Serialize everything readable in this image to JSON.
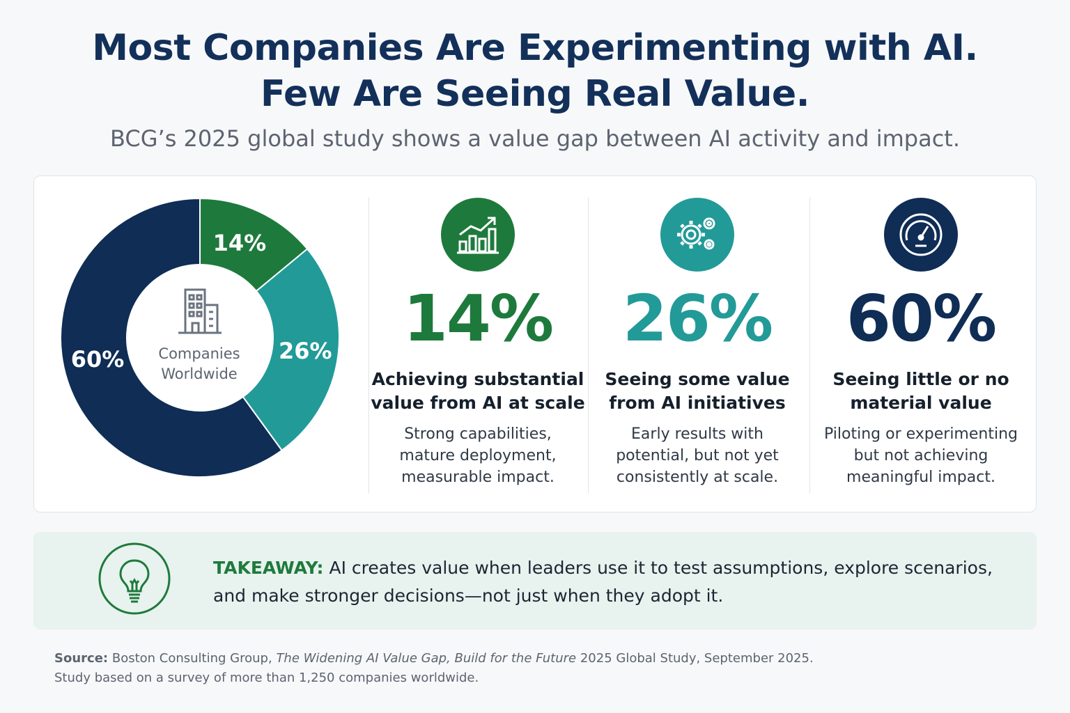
{
  "title": {
    "line1": "Most Companies Are Experimenting with AI.",
    "line2": "Few Are Seeing Real Value."
  },
  "subtitle": "BCG’s 2025 global study shows a value gap between AI activity and impact.",
  "colors": {
    "green": "#1e7a3c",
    "teal": "#229a98",
    "navy": "#0f2d55",
    "takeaway_bg": "#e8f2ee"
  },
  "chart_data": {
    "type": "pie",
    "donut": true,
    "center_label": {
      "line1": "Companies",
      "line2": "Worldwide"
    },
    "center_icon": "building-icon",
    "categories": [
      "Achieving substantial value from AI at scale",
      "Seeing some value from AI initiatives",
      "Seeing little or no material value"
    ],
    "values": [
      14,
      26,
      60
    ],
    "labels": [
      "14%",
      "26%",
      "60%"
    ],
    "colors": [
      "#1e7a3c",
      "#229a98",
      "#0f2d55"
    ]
  },
  "stats": [
    {
      "icon": "growth-chart-icon",
      "value": "14%",
      "heading_line1": "Achieving substantial",
      "heading_line2": "value from AI at scale",
      "desc_line1": "Strong capabilities,",
      "desc_line2": "mature deployment,",
      "desc_line3": "measurable impact.",
      "color": "#1e7a3c"
    },
    {
      "icon": "gears-icon",
      "value": "26%",
      "heading_line1": "Seeing some value",
      "heading_line2": "from AI initiatives",
      "desc_line1": "Early results with",
      "desc_line2": "potential, but not yet",
      "desc_line3": "consistently at scale.",
      "color": "#229a98"
    },
    {
      "icon": "gauge-icon",
      "value": "60%",
      "heading_line1": "Seeing little or no",
      "heading_line2": "material value",
      "desc_line1": "Piloting or experimenting",
      "desc_line2": "but not achieving",
      "desc_line3": "meaningful impact.",
      "color": "#0f2d55"
    }
  ],
  "takeaway": {
    "icon": "lightbulb-icon",
    "label": "TAKEAWAY:",
    "line1": "AI creates value when leaders use it to test assumptions, explore scenarios,",
    "line2": "and make stronger decisions—not just when they adopt it."
  },
  "source": {
    "label": "Source:",
    "prefix": "Boston Consulting Group,",
    "italic": "The Widening AI Value Gap, Build for the Future",
    "suffix": "2025 Global Study, September 2025.",
    "line2": "Study based on a survey of more than 1,250 companies worldwide."
  }
}
